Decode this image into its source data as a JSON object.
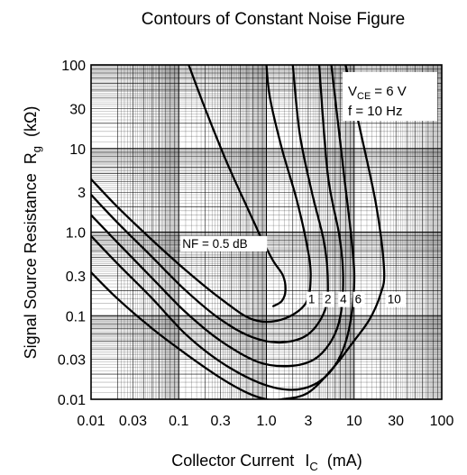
{
  "chart_data": {
    "type": "line",
    "title": "Contours of Constant Noise Figure",
    "xlabel": {
      "text": "Collector Current",
      "symbol": "I",
      "subscript": "C",
      "unit": "(mA)"
    },
    "ylabel": {
      "text": "Signal Source Resistance",
      "symbol": "R",
      "subscript": "g",
      "unit": "(kΩ)"
    },
    "x_scale": "log",
    "y_scale": "log",
    "xlim": [
      0.01,
      100
    ],
    "ylim": [
      0.01,
      100
    ],
    "x_ticks": [
      0.01,
      0.03,
      0.1,
      0.3,
      1.0,
      3,
      10,
      30,
      100
    ],
    "x_tick_labels": [
      "0.01",
      "0.03",
      "0.1",
      "0.3",
      "1.0",
      "3",
      "10",
      "30",
      "100"
    ],
    "y_ticks": [
      0.01,
      0.03,
      0.1,
      0.3,
      1.0,
      3,
      10,
      30,
      100
    ],
    "y_tick_labels": [
      "0.01",
      "0.03",
      "0.1",
      "0.3",
      "1.0",
      "3",
      "10",
      "30",
      "100"
    ],
    "grid": true,
    "conditions": {
      "vce": {
        "symbol": "V",
        "subscript": "CE",
        "value": "= 6 V"
      },
      "freq": "f = 10 Hz"
    },
    "series": [
      {
        "name": "NF = 0.5 dB",
        "label_text": "NF = 0.5 dB",
        "x": [
          0.13,
          0.2,
          0.35,
          0.6,
          0.9,
          1.2,
          1.55,
          1.65,
          1.5,
          1.2
        ],
        "y": [
          100,
          30,
          7,
          2,
          0.8,
          0.45,
          0.3,
          0.2,
          0.15,
          0.13
        ]
      },
      {
        "name": "1",
        "label_text": "1",
        "x": [
          0.01,
          0.02,
          0.05,
          0.12,
          0.3,
          0.7,
          1.5,
          2.8,
          3.2,
          2.9,
          2.2,
          1.5,
          1.1,
          1.0
        ],
        "y": [
          4.3,
          2.0,
          0.8,
          0.35,
          0.16,
          0.09,
          0.09,
          0.14,
          0.3,
          0.7,
          2.5,
          10,
          40,
          100
        ]
      },
      {
        "name": "2",
        "label_text": "2",
        "x": [
          0.01,
          0.02,
          0.05,
          0.12,
          0.3,
          0.7,
          1.5,
          3.0,
          4.7,
          5.0,
          4.5,
          3.3,
          2.4,
          2.0
        ],
        "y": [
          2.8,
          1.3,
          0.5,
          0.2,
          0.09,
          0.055,
          0.048,
          0.06,
          0.12,
          0.3,
          0.8,
          3,
          15,
          100
        ]
      },
      {
        "name": "4",
        "label_text": "4",
        "x": [
          0.01,
          0.02,
          0.05,
          0.12,
          0.3,
          0.8,
          1.8,
          3.5,
          5.5,
          7.0,
          7.5,
          6.8,
          5.0,
          4.0
        ],
        "y": [
          1.6,
          0.75,
          0.28,
          0.11,
          0.05,
          0.028,
          0.025,
          0.03,
          0.05,
          0.1,
          0.3,
          0.9,
          5,
          100
        ]
      },
      {
        "name": "6",
        "label_text": "6",
        "x": [
          0.01,
          0.02,
          0.05,
          0.12,
          0.3,
          0.8,
          1.8,
          3.5,
          6.0,
          8.5,
          10.0,
          9.5,
          7.5,
          5.5
        ],
        "y": [
          0.9,
          0.42,
          0.16,
          0.06,
          0.028,
          0.016,
          0.013,
          0.015,
          0.025,
          0.06,
          0.22,
          0.7,
          6,
          100
        ]
      },
      {
        "name": "10",
        "label_text": "10",
        "x": [
          0.01,
          0.02,
          0.05,
          0.12,
          0.3,
          0.6,
          1.0,
          1.5,
          3.0,
          6.0,
          10.0,
          15.0,
          20.0,
          22.0,
          18.0,
          12.0,
          8.0
        ],
        "y": [
          0.33,
          0.16,
          0.07,
          0.035,
          0.018,
          0.012,
          0.01,
          0.01,
          0.012,
          0.025,
          0.05,
          0.09,
          0.18,
          0.35,
          2.0,
          15,
          100
        ]
      }
    ]
  }
}
